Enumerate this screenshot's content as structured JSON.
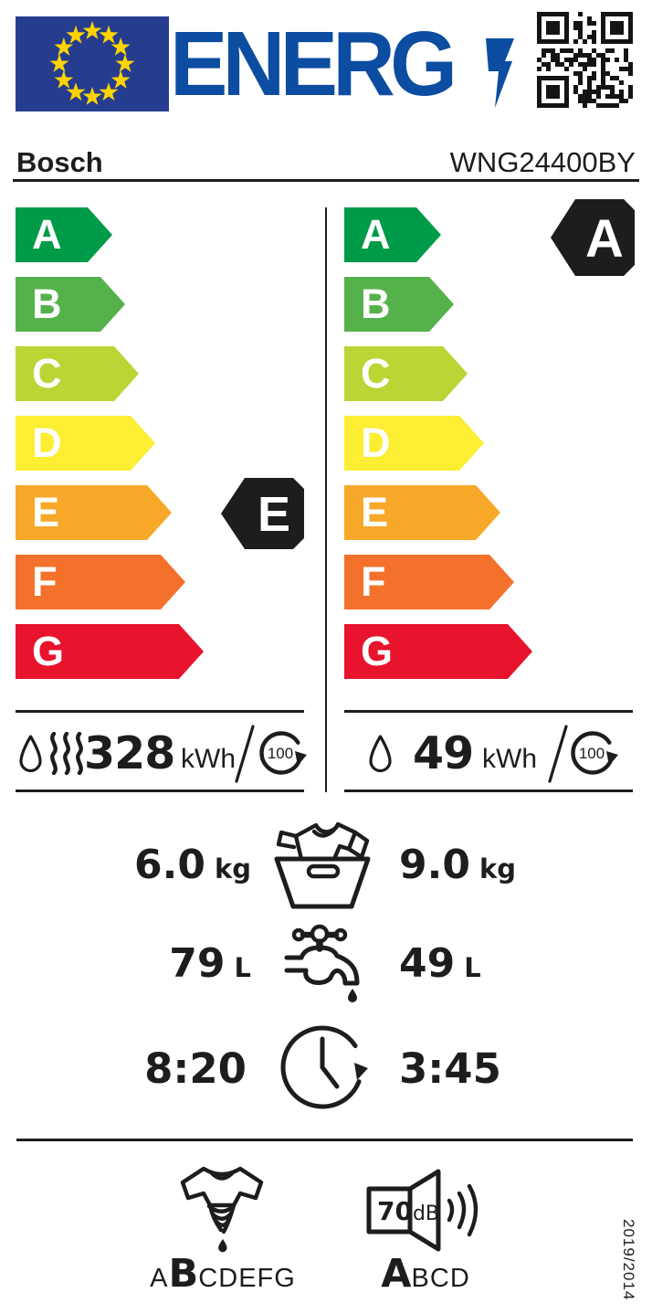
{
  "header": {
    "logo_text": "ENERG",
    "brand": "Bosch",
    "model": "WNG24400BY"
  },
  "efficiency_scale": {
    "grades": [
      {
        "letter": "A",
        "color": "#009b48"
      },
      {
        "letter": "B",
        "color": "#55b24b"
      },
      {
        "letter": "C",
        "color": "#bdd435"
      },
      {
        "letter": "D",
        "color": "#fcee32"
      },
      {
        "letter": "E",
        "color": "#f7a829"
      },
      {
        "letter": "F",
        "color": "#f3712b"
      },
      {
        "letter": "G",
        "color": "#e8132c"
      }
    ]
  },
  "complete_cycle": {
    "grade": "E",
    "energy_value": "328",
    "energy_unit": "kWh",
    "per_cycles": "100"
  },
  "washing_cycle": {
    "grade": "A",
    "energy_value": "49",
    "energy_unit": "kWh",
    "per_cycles": "100"
  },
  "capacity": {
    "complete_value": "6.0",
    "complete_unit": "kg",
    "wash_value": "9.0",
    "wash_unit": "kg"
  },
  "water": {
    "complete_value": "79",
    "complete_unit": "L",
    "wash_value": "49",
    "wash_unit": "L"
  },
  "duration": {
    "complete_value": "8:20",
    "wash_value": "3:45"
  },
  "spin": {
    "scale": [
      "A",
      "B",
      "C",
      "D",
      "E",
      "F",
      "G"
    ],
    "grade": "B"
  },
  "noise": {
    "value": "70",
    "unit": "dB",
    "scale": [
      "A",
      "B",
      "C",
      "D"
    ],
    "grade": "A"
  },
  "footer": {
    "regulation": "2019/2014"
  },
  "colors": {
    "ink": "#1d1d1b",
    "eu_blue": "#263d8f",
    "energy_blue": "#0c4da2",
    "star_yellow": "#ffd500",
    "grade_a": "#009b48",
    "grade_b": "#55b24b",
    "grade_c": "#bdd435",
    "grade_d": "#fcee32",
    "grade_e": "#f7a829",
    "grade_f": "#f3712b",
    "grade_g": "#e8132c"
  }
}
